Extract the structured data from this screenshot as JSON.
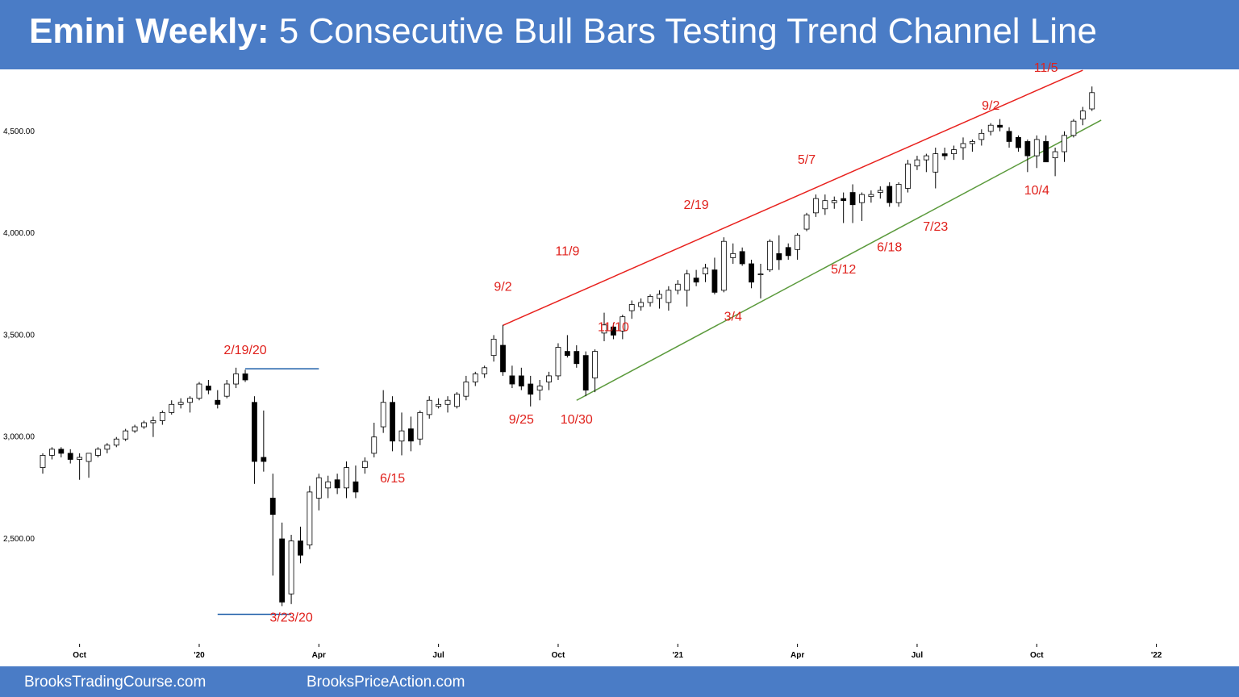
{
  "header": {
    "title_bold": "Emini Weekly:",
    "title_rest": "5 Consecutive Bull Bars Testing Trend Channel Line",
    "background": "#4a7cc6"
  },
  "footer": {
    "left": "BrooksTradingCourse.com",
    "right": "BrooksPriceAction.com"
  },
  "chart_data": {
    "type": "candlestick",
    "title": "",
    "ylim": [
      2100,
      4800
    ],
    "y_ticks": [
      2500,
      3000,
      3500,
      4000,
      4500
    ],
    "y_tick_labels": [
      "2,500.00",
      "3,000.00",
      "3,500.00",
      "4,000.00",
      "4,500.00"
    ],
    "x_ticks": [
      {
        "label": "Oct",
        "week": 4
      },
      {
        "label": "'20",
        "week": 17
      },
      {
        "label": "Apr",
        "week": 30
      },
      {
        "label": "Jul",
        "week": 43
      },
      {
        "label": "Oct",
        "week": 56
      },
      {
        "label": "'21",
        "week": 69
      },
      {
        "label": "Apr",
        "week": 82
      },
      {
        "label": "Jul",
        "week": 95
      },
      {
        "label": "Oct",
        "week": 108
      },
      {
        "label": "'22",
        "week": 121
      }
    ],
    "candles": [
      [
        2850,
        2920,
        2820,
        2910
      ],
      [
        2910,
        2950,
        2890,
        2940
      ],
      [
        2940,
        2950,
        2900,
        2920
      ],
      [
        2920,
        2940,
        2870,
        2890
      ],
      [
        2890,
        2920,
        2790,
        2900
      ],
      [
        2880,
        2920,
        2800,
        2920
      ],
      [
        2910,
        2950,
        2900,
        2940
      ],
      [
        2940,
        2970,
        2920,
        2960
      ],
      [
        2960,
        3000,
        2950,
        2990
      ],
      [
        2990,
        3040,
        2980,
        3030
      ],
      [
        3030,
        3060,
        3020,
        3050
      ],
      [
        3050,
        3080,
        3040,
        3070
      ],
      [
        3070,
        3100,
        3000,
        3080
      ],
      [
        3080,
        3130,
        3060,
        3120
      ],
      [
        3120,
        3180,
        3110,
        3160
      ],
      [
        3160,
        3190,
        3140,
        3170
      ],
      [
        3170,
        3200,
        3120,
        3190
      ],
      [
        3190,
        3270,
        3180,
        3260
      ],
      [
        3250,
        3280,
        3210,
        3230
      ],
      [
        3180,
        3230,
        3140,
        3160
      ],
      [
        3200,
        3280,
        3190,
        3260
      ],
      [
        3260,
        3340,
        3240,
        3310
      ],
      [
        3310,
        3330,
        3270,
        3280
      ],
      [
        3170,
        3200,
        2770,
        2880
      ],
      [
        2900,
        3130,
        2830,
        2880
      ],
      [
        2700,
        2820,
        2320,
        2620
      ],
      [
        2500,
        2580,
        2170,
        2190
      ],
      [
        2230,
        2520,
        2180,
        2490
      ],
      [
        2490,
        2560,
        2380,
        2420
      ],
      [
        2470,
        2760,
        2450,
        2730
      ],
      [
        2700,
        2820,
        2640,
        2800
      ],
      [
        2750,
        2810,
        2700,
        2780
      ],
      [
        2790,
        2820,
        2720,
        2750
      ],
      [
        2750,
        2880,
        2700,
        2850
      ],
      [
        2780,
        2860,
        2700,
        2730
      ],
      [
        2850,
        2900,
        2820,
        2880
      ],
      [
        2920,
        3070,
        2900,
        3000
      ],
      [
        3050,
        3230,
        3020,
        3170
      ],
      [
        3170,
        3200,
        2930,
        2980
      ],
      [
        2980,
        3120,
        2910,
        3030
      ],
      [
        3040,
        3100,
        2930,
        2980
      ],
      [
        2990,
        3130,
        2960,
        3120
      ],
      [
        3110,
        3200,
        3090,
        3180
      ],
      [
        3150,
        3190,
        3140,
        3160
      ],
      [
        3160,
        3200,
        3120,
        3180
      ],
      [
        3150,
        3220,
        3140,
        3210
      ],
      [
        3200,
        3300,
        3180,
        3270
      ],
      [
        3270,
        3320,
        3250,
        3310
      ],
      [
        3310,
        3350,
        3290,
        3340
      ],
      [
        3400,
        3500,
        3370,
        3480
      ],
      [
        3450,
        3550,
        3300,
        3320
      ],
      [
        3300,
        3350,
        3240,
        3260
      ],
      [
        3300,
        3340,
        3230,
        3250
      ],
      [
        3260,
        3300,
        3150,
        3210
      ],
      [
        3230,
        3280,
        3180,
        3250
      ],
      [
        3270,
        3320,
        3230,
        3300
      ],
      [
        3300,
        3460,
        3280,
        3440
      ],
      [
        3420,
        3500,
        3390,
        3400
      ],
      [
        3420,
        3450,
        3340,
        3360
      ],
      [
        3400,
        3420,
        3200,
        3230
      ],
      [
        3290,
        3430,
        3220,
        3420
      ],
      [
        3510,
        3610,
        3470,
        3550
      ],
      [
        3540,
        3560,
        3480,
        3500
      ],
      [
        3520,
        3600,
        3480,
        3590
      ],
      [
        3620,
        3670,
        3580,
        3650
      ],
      [
        3640,
        3680,
        3620,
        3660
      ],
      [
        3660,
        3700,
        3640,
        3690
      ],
      [
        3680,
        3720,
        3630,
        3700
      ],
      [
        3660,
        3740,
        3620,
        3720
      ],
      [
        3720,
        3770,
        3700,
        3750
      ],
      [
        3720,
        3820,
        3640,
        3800
      ],
      [
        3780,
        3820,
        3740,
        3760
      ],
      [
        3800,
        3850,
        3760,
        3830
      ],
      [
        3820,
        3880,
        3700,
        3710
      ],
      [
        3720,
        3980,
        3710,
        3960
      ],
      [
        3880,
        3950,
        3850,
        3900
      ],
      [
        3910,
        3930,
        3840,
        3850
      ],
      [
        3850,
        3870,
        3730,
        3760
      ],
      [
        3800,
        3850,
        3680,
        3800
      ],
      [
        3820,
        3970,
        3810,
        3960
      ],
      [
        3900,
        3990,
        3820,
        3870
      ],
      [
        3930,
        3950,
        3870,
        3890
      ],
      [
        3920,
        4000,
        3870,
        3990
      ],
      [
        4020,
        4100,
        4010,
        4090
      ],
      [
        4100,
        4190,
        4080,
        4170
      ],
      [
        4120,
        4190,
        4090,
        4160
      ],
      [
        4150,
        4180,
        4120,
        4160
      ],
      [
        4170,
        4200,
        4050,
        4160
      ],
      [
        4200,
        4240,
        4050,
        4140
      ],
      [
        4150,
        4200,
        4060,
        4190
      ],
      [
        4180,
        4210,
        4150,
        4190
      ],
      [
        4200,
        4230,
        4170,
        4210
      ],
      [
        4230,
        4250,
        4130,
        4150
      ],
      [
        4150,
        4250,
        4130,
        4240
      ],
      [
        4220,
        4360,
        4200,
        4340
      ],
      [
        4330,
        4380,
        4310,
        4360
      ],
      [
        4360,
        4390,
        4300,
        4380
      ],
      [
        4300,
        4420,
        4220,
        4390
      ],
      [
        4390,
        4420,
        4360,
        4380
      ],
      [
        4390,
        4430,
        4360,
        4410
      ],
      [
        4420,
        4470,
        4360,
        4440
      ],
      [
        4440,
        4460,
        4400,
        4450
      ],
      [
        4460,
        4510,
        4430,
        4490
      ],
      [
        4500,
        4540,
        4480,
        4530
      ],
      [
        4530,
        4560,
        4500,
        4520
      ],
      [
        4500,
        4520,
        4420,
        4450
      ],
      [
        4470,
        4480,
        4400,
        4420
      ],
      [
        4450,
        4460,
        4300,
        4380
      ],
      [
        4380,
        4480,
        4320,
        4460
      ],
      [
        4450,
        4480,
        4350,
        4350
      ],
      [
        4370,
        4420,
        4280,
        4400
      ],
      [
        4400,
        4500,
        4350,
        4480
      ],
      [
        4480,
        4560,
        4470,
        4550
      ],
      [
        4560,
        4620,
        4530,
        4600
      ],
      [
        4610,
        4720,
        4600,
        4690
      ]
    ],
    "annotations": [
      {
        "text": "2/19/20",
        "week": 22,
        "price": 3406
      },
      {
        "text": "3/23/20",
        "week": 27,
        "price": 2095
      },
      {
        "text": "6/15",
        "week": 38,
        "price": 2777
      },
      {
        "text": "9/2",
        "week": 50,
        "price": 3718
      },
      {
        "text": "9/25",
        "week": 52,
        "price": 3067
      },
      {
        "text": "11/9",
        "week": 57,
        "price": 3892
      },
      {
        "text": "10/30",
        "week": 58,
        "price": 3067
      },
      {
        "text": "11/10",
        "week": 62,
        "price": 3520
      },
      {
        "text": "2/19",
        "week": 71,
        "price": 4119
      },
      {
        "text": "3/4",
        "week": 75,
        "price": 3571
      },
      {
        "text": "5/7",
        "week": 83,
        "price": 4341
      },
      {
        "text": "5/12",
        "week": 87,
        "price": 3802
      },
      {
        "text": "6/18",
        "week": 92,
        "price": 3912
      },
      {
        "text": "7/23",
        "week": 97,
        "price": 4012
      },
      {
        "text": "9/2",
        "week": 103,
        "price": 4606
      },
      {
        "text": "10/4",
        "week": 108,
        "price": 4190
      },
      {
        "text": "11/5",
        "week": 109,
        "price": 4793
      }
    ],
    "lines": [
      {
        "name": "trend-channel-line",
        "color": "#e8211d",
        "from": {
          "week": 50,
          "price": 3548
        },
        "to": {
          "week": 113,
          "price": 4800
        }
      },
      {
        "name": "bull-trend-line",
        "color": "#5b9a3c",
        "from": {
          "week": 58,
          "price": 3180
        },
        "to": {
          "week": 115,
          "price": 4555
        }
      },
      {
        "name": "feb-2020-high-line",
        "color": "#1f5fa9",
        "from": {
          "week": 22,
          "price": 3335
        },
        "to": {
          "week": 30,
          "price": 3335
        }
      },
      {
        "name": "mar-2020-low-line",
        "color": "#1f5fa9",
        "from": {
          "week": 19,
          "price": 2130
        },
        "to": {
          "week": 27,
          "price": 2130
        }
      }
    ]
  }
}
